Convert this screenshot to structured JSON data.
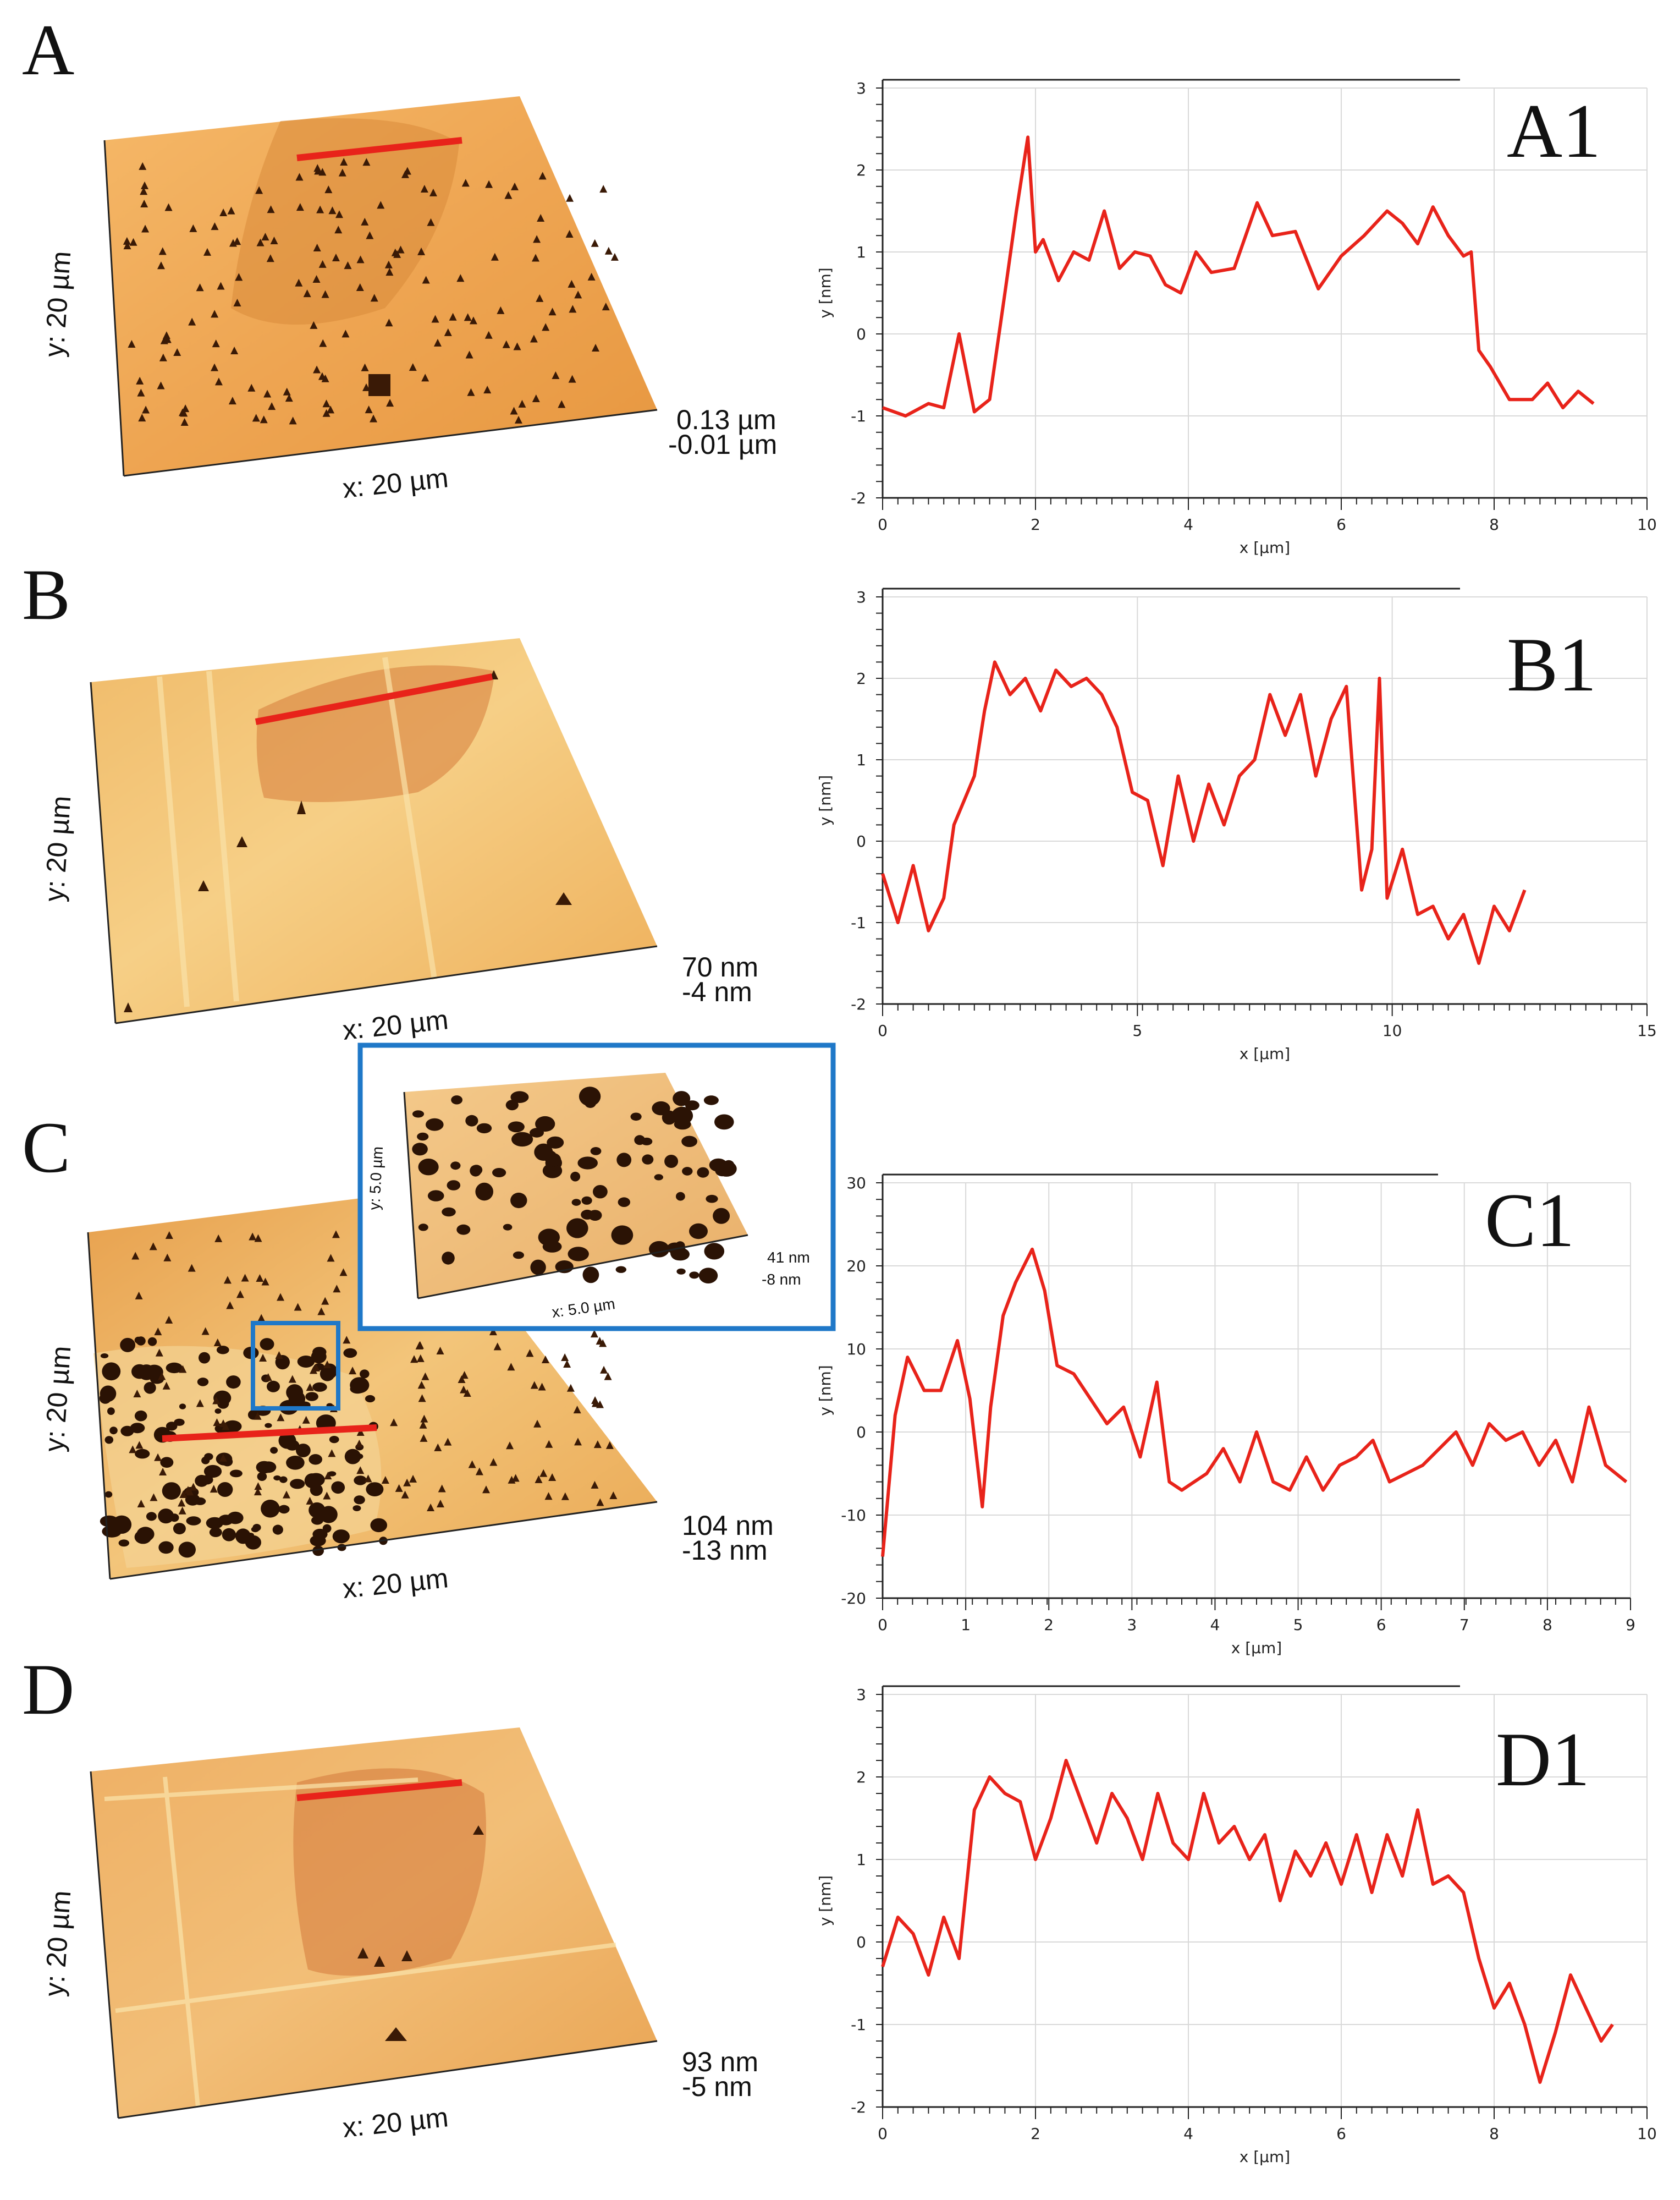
{
  "colors": {
    "profile_line": "#e8231a",
    "inset_box": "#1f78c8",
    "afm_light": "#f2c27a",
    "afm_mid": "#d98a3a",
    "afm_dark": "#6b2a06"
  },
  "afm_panels": [
    {
      "id": "A",
      "letter": "A",
      "x_label": "x: 20 µm",
      "y_label": "y: 20 µm",
      "z_max": "0.13 µm",
      "z_min": "-0.01 µm"
    },
    {
      "id": "B",
      "letter": "B",
      "x_label": "x: 20 µm",
      "y_label": "y: 20 µm",
      "z_max": "70 nm",
      "z_min": "-4 nm"
    },
    {
      "id": "C",
      "letter": "C",
      "x_label": "x: 20 µm",
      "y_label": "y: 20 µm",
      "z_max": "104 nm",
      "z_min": "-13 nm"
    },
    {
      "id": "D",
      "letter": "D",
      "x_label": "x: 20 µm",
      "y_label": "y: 20 µm",
      "z_max": "93 nm",
      "z_min": "-5 nm"
    }
  ],
  "inset": {
    "x_label": "x: 5.0 µm",
    "y_label": "y: 5.0 µm",
    "z_max": "41 nm",
    "z_min": "-8 nm"
  },
  "chart_data": [
    {
      "type": "line",
      "tag": "A1",
      "xlabel": "x [µm]",
      "ylabel": "y [nm]",
      "xlim": [
        0,
        10
      ],
      "ylim": [
        -2,
        3
      ],
      "xticks": [
        0,
        2,
        4,
        6,
        8,
        10
      ],
      "yticks": [
        -2,
        -1,
        0,
        1,
        2,
        3
      ],
      "x": [
        0,
        0.3,
        0.6,
        0.8,
        1.0,
        1.2,
        1.4,
        1.6,
        1.75,
        1.9,
        2.0,
        2.1,
        2.3,
        2.5,
        2.7,
        2.9,
        3.1,
        3.3,
        3.5,
        3.7,
        3.9,
        4.1,
        4.3,
        4.6,
        4.9,
        5.1,
        5.4,
        5.7,
        6.0,
        6.3,
        6.6,
        6.8,
        7.0,
        7.2,
        7.4,
        7.6,
        7.7,
        7.8,
        7.95,
        8.2,
        8.5,
        8.7,
        8.9,
        9.1,
        9.3
      ],
      "y": [
        -0.9,
        -1.0,
        -0.85,
        -0.9,
        0.0,
        -0.95,
        -0.8,
        0.5,
        1.5,
        2.4,
        1.0,
        1.15,
        0.65,
        1.0,
        0.9,
        1.5,
        0.8,
        1.0,
        0.95,
        0.6,
        0.5,
        1.0,
        0.75,
        0.8,
        1.6,
        1.2,
        1.25,
        0.55,
        0.95,
        1.2,
        1.5,
        1.35,
        1.1,
        1.55,
        1.2,
        0.95,
        1.0,
        -0.2,
        -0.4,
        -0.8,
        -0.8,
        -0.6,
        -0.9,
        -0.7,
        -0.85
      ]
    },
    {
      "type": "line",
      "tag": "B1",
      "xlabel": "x [µm]",
      "ylabel": "y [nm]",
      "xlim": [
        0,
        15
      ],
      "ylim": [
        -2,
        3
      ],
      "xticks": [
        0,
        5,
        10,
        15
      ],
      "yticks": [
        -2,
        -1,
        0,
        1,
        2,
        3
      ],
      "x": [
        0,
        0.3,
        0.6,
        0.9,
        1.2,
        1.4,
        1.6,
        1.8,
        2.0,
        2.2,
        2.5,
        2.8,
        3.1,
        3.4,
        3.7,
        4.0,
        4.3,
        4.6,
        4.9,
        5.2,
        5.5,
        5.8,
        6.1,
        6.4,
        6.7,
        7.0,
        7.3,
        7.6,
        7.9,
        8.2,
        8.5,
        8.8,
        9.1,
        9.4,
        9.6,
        9.75,
        9.9,
        10.2,
        10.5,
        10.8,
        11.1,
        11.4,
        11.7,
        12.0,
        12.3,
        12.6
      ],
      "y": [
        -0.4,
        -1.0,
        -0.3,
        -1.1,
        -0.7,
        0.2,
        0.5,
        0.8,
        1.6,
        2.2,
        1.8,
        2.0,
        1.6,
        2.1,
        1.9,
        2.0,
        1.8,
        1.4,
        0.6,
        0.5,
        -0.3,
        0.8,
        0.0,
        0.7,
        0.2,
        0.8,
        1.0,
        1.8,
        1.3,
        1.8,
        0.8,
        1.5,
        1.9,
        -0.6,
        -0.1,
        2.0,
        -0.7,
        -0.1,
        -0.9,
        -0.8,
        -1.2,
        -0.9,
        -1.5,
        -0.8,
        -1.1,
        -0.6
      ]
    },
    {
      "type": "line",
      "tag": "C1",
      "xlabel": "x [µm]",
      "ylabel": "y [nm]",
      "xlim": [
        0,
        9
      ],
      "ylim": [
        -20,
        30
      ],
      "xticks": [
        0,
        1,
        2,
        3,
        4,
        5,
        6,
        7,
        8,
        9
      ],
      "yticks": [
        -20,
        -10,
        0,
        10,
        20,
        30
      ],
      "x": [
        0,
        0.15,
        0.3,
        0.5,
        0.7,
        0.9,
        1.05,
        1.2,
        1.3,
        1.45,
        1.6,
        1.8,
        1.95,
        2.1,
        2.3,
        2.5,
        2.7,
        2.9,
        3.1,
        3.3,
        3.45,
        3.6,
        3.9,
        4.1,
        4.3,
        4.5,
        4.7,
        4.9,
        5.1,
        5.3,
        5.5,
        5.7,
        5.9,
        6.1,
        6.3,
        6.5,
        6.7,
        6.9,
        7.1,
        7.3,
        7.5,
        7.7,
        7.9,
        8.1,
        8.3,
        8.5,
        8.7,
        8.95
      ],
      "y": [
        -15,
        2,
        9,
        5,
        5,
        11,
        4,
        -9,
        3,
        14,
        18,
        22,
        17,
        8,
        7,
        4,
        1,
        3,
        -3,
        6,
        -6,
        -7,
        -5,
        -2,
        -6,
        0,
        -6,
        -7,
        -3,
        -7,
        -4,
        -3,
        -1,
        -6,
        -5,
        -4,
        -2,
        0,
        -4,
        1,
        -1,
        0,
        -4,
        -1,
        -6,
        3,
        -4,
        -6
      ]
    },
    {
      "type": "line",
      "tag": "D1",
      "xlabel": "x [µm]",
      "ylabel": "y [nm]",
      "xlim": [
        0,
        10
      ],
      "ylim": [
        -2,
        3
      ],
      "xticks": [
        0,
        2,
        4,
        6,
        8,
        10
      ],
      "yticks": [
        -2,
        -1,
        0,
        1,
        2,
        3
      ],
      "x": [
        0,
        0.2,
        0.4,
        0.6,
        0.8,
        1.0,
        1.2,
        1.4,
        1.6,
        1.8,
        2.0,
        2.2,
        2.4,
        2.6,
        2.8,
        3.0,
        3.2,
        3.4,
        3.6,
        3.8,
        4.0,
        4.2,
        4.4,
        4.6,
        4.8,
        5.0,
        5.2,
        5.4,
        5.6,
        5.8,
        6.0,
        6.2,
        6.4,
        6.6,
        6.8,
        7.0,
        7.2,
        7.4,
        7.6,
        7.8,
        8.0,
        8.2,
        8.4,
        8.6,
        8.8,
        9.0,
        9.2,
        9.4,
        9.55
      ],
      "y": [
        -0.3,
        0.3,
        0.1,
        -0.4,
        0.3,
        -0.2,
        1.6,
        2.0,
        1.8,
        1.7,
        1.0,
        1.5,
        2.2,
        1.7,
        1.2,
        1.8,
        1.5,
        1.0,
        1.8,
        1.2,
        1.0,
        1.8,
        1.2,
        1.4,
        1.0,
        1.3,
        0.5,
        1.1,
        0.8,
        1.2,
        0.7,
        1.3,
        0.6,
        1.3,
        0.8,
        1.6,
        0.7,
        0.8,
        0.6,
        -0.2,
        -0.8,
        -0.5,
        -1.0,
        -1.7,
        -1.1,
        -0.4,
        -0.8,
        -1.2,
        -1.0
      ]
    }
  ]
}
